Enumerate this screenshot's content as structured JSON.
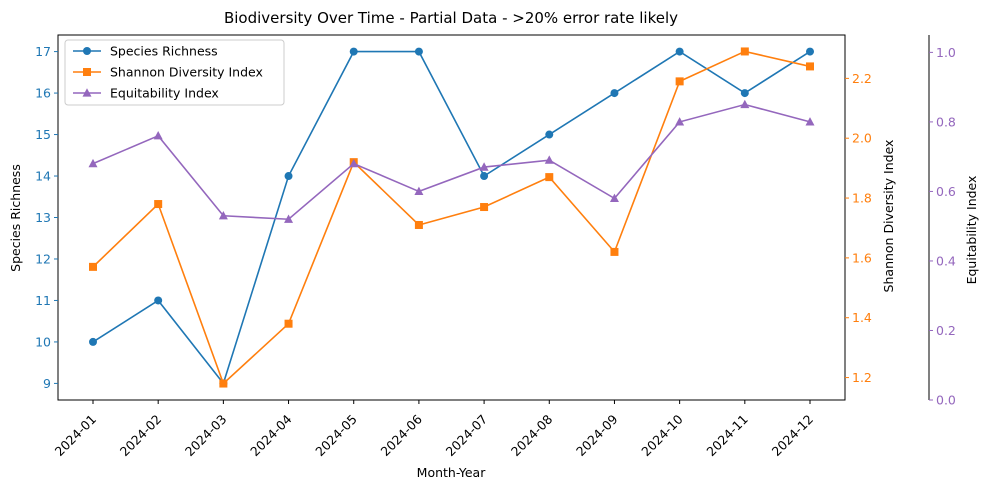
{
  "chart_data": {
    "type": "line",
    "title": "Biodiversity Over Time - Partial Data - >20% error rate likely",
    "xlabel": "Month-Year",
    "x": [
      "2024-01",
      "2024-02",
      "2024-03",
      "2024-04",
      "2024-05",
      "2024-06",
      "2024-07",
      "2024-08",
      "2024-09",
      "2024-10",
      "2024-11",
      "2024-12"
    ],
    "series": [
      {
        "name": "Species Richness",
        "axis": "left",
        "color": "#1f77b4",
        "marker": "circle",
        "values": [
          10,
          11,
          9,
          14,
          17,
          17,
          14,
          15,
          16,
          17,
          16,
          17
        ]
      },
      {
        "name": "Shannon Diversity Index",
        "axis": "right",
        "color": "#ff7f0e",
        "marker": "square",
        "values": [
          1.57,
          1.78,
          1.18,
          1.38,
          1.92,
          1.71,
          1.77,
          1.87,
          1.62,
          2.19,
          2.29,
          2.24
        ]
      },
      {
        "name": "Equitability Index",
        "axis": "right2",
        "color": "#9467bd",
        "marker": "triangle",
        "values": [
          0.68,
          0.76,
          0.53,
          0.52,
          0.68,
          0.6,
          0.67,
          0.69,
          0.58,
          0.8,
          0.85,
          0.8
        ]
      }
    ],
    "axes": {
      "left": {
        "label": "Species Richness",
        "color": "#1f77b4",
        "ylim": [
          8.6,
          17.4
        ],
        "ticks": [
          9,
          10,
          11,
          12,
          13,
          14,
          15,
          16,
          17
        ],
        "tick_labels": [
          "9",
          "10",
          "11",
          "12",
          "13",
          "14",
          "15",
          "16",
          "17"
        ]
      },
      "right": {
        "label": "Shannon Diversity Index",
        "color": "#ff7f0e",
        "ylim": [
          1.125,
          2.345
        ],
        "ticks": [
          1.2,
          1.4,
          1.6,
          1.8,
          2.0,
          2.2
        ],
        "tick_labels": [
          "1.2",
          "1.4",
          "1.6",
          "1.8",
          "2.0",
          "2.2"
        ]
      },
      "right2": {
        "label": "Equitability Index",
        "color": "#9467bd",
        "ylim": [
          0,
          1.05
        ],
        "ticks": [
          0,
          0.2,
          0.4,
          0.6,
          0.8,
          1.0
        ],
        "tick_labels": [
          "0.0",
          "0.2",
          "0.4",
          "0.6",
          "0.8",
          "1.0"
        ]
      }
    },
    "grid": false,
    "legend": "top-left"
  }
}
